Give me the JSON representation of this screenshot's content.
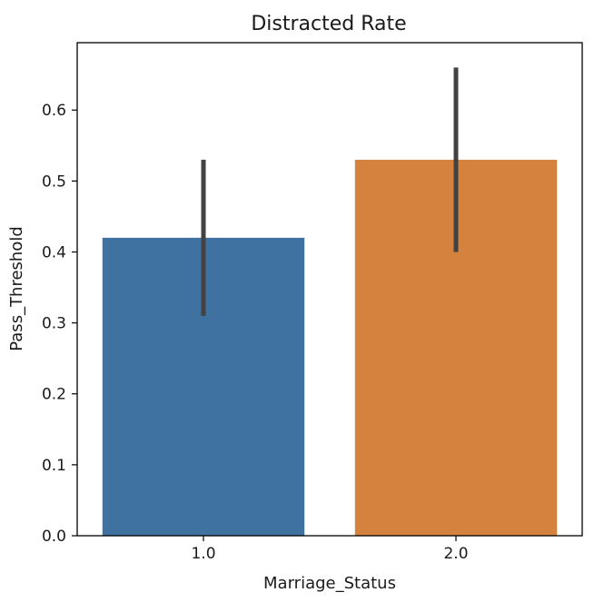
{
  "chart_data": {
    "type": "bar",
    "title": "Distracted Rate",
    "xlabel": "Marriage_Status",
    "ylabel": "Pass_Threshold",
    "categories": [
      "1.0",
      "2.0"
    ],
    "values": [
      0.42,
      0.53
    ],
    "error_bars": [
      {
        "low": 0.31,
        "high": 0.53
      },
      {
        "low": 0.4,
        "high": 0.66
      }
    ],
    "colors": [
      "#3f72a0",
      "#d5823f"
    ],
    "errorbar_color": "#424242",
    "ylim": [
      0.0,
      0.695
    ],
    "yticks": [
      "0.0",
      "0.1",
      "0.2",
      "0.3",
      "0.4",
      "0.5",
      "0.6"
    ],
    "grid": false,
    "legend": false
  }
}
